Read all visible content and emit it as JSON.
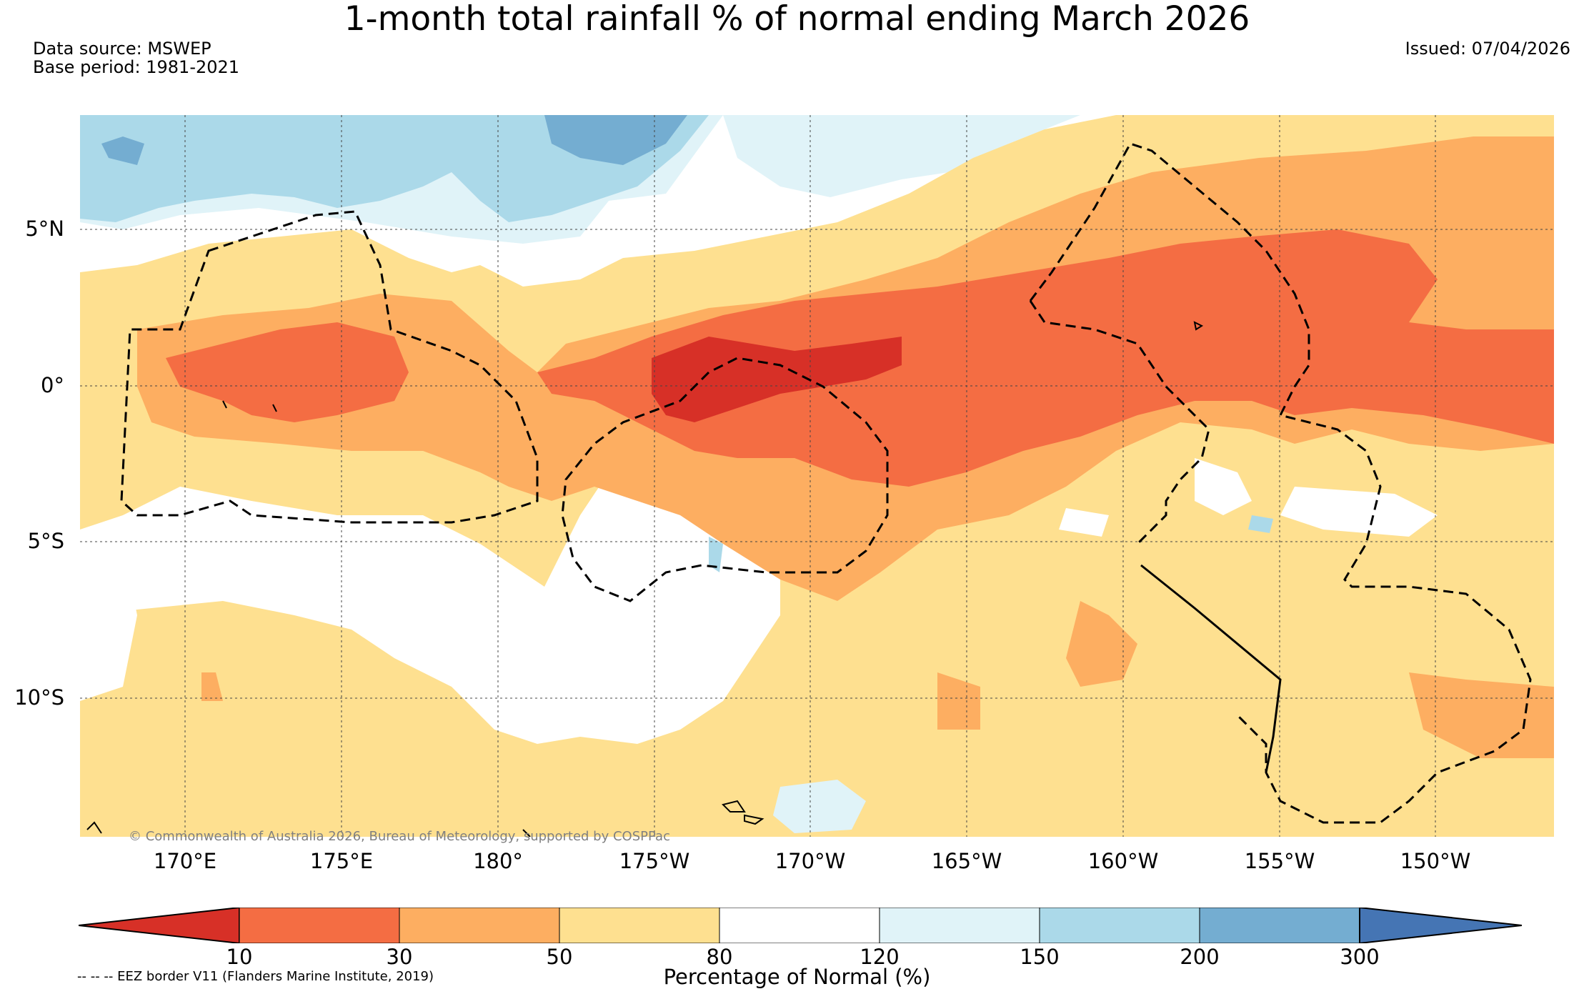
{
  "header": {
    "title": "1-month total rainfall % of normal ending March 2026",
    "data_source": "Data source: MSWEP",
    "base_period": "Base period: 1981-2021",
    "issued": "Issued: 07/04/2026"
  },
  "map": {
    "lat_labels": [
      "5°N",
      "0°",
      "5°S",
      "10°S"
    ],
    "lon_labels": [
      "170°E",
      "175°E",
      "180°",
      "175°W",
      "170°W",
      "165°W",
      "160°W",
      "155°W",
      "150°W"
    ],
    "copyright": "© Commonwealth of Australia 2026, Bureau of Meteorology, supported by COSPPac"
  },
  "legend": {
    "ticks": [
      "10",
      "30",
      "50",
      "80",
      "120",
      "150",
      "200",
      "300"
    ],
    "label": "Percentage of Normal (%)",
    "colors": [
      "#d73027",
      "#f46d43",
      "#fdae61",
      "#fee090",
      "#ffffff",
      "#e0f3f8",
      "#abd9e9",
      "#74add1",
      "#4575b4"
    ],
    "eez_note": "-- -- -- EEZ border V11 (Flanders Marine Institute, 2019)"
  }
}
